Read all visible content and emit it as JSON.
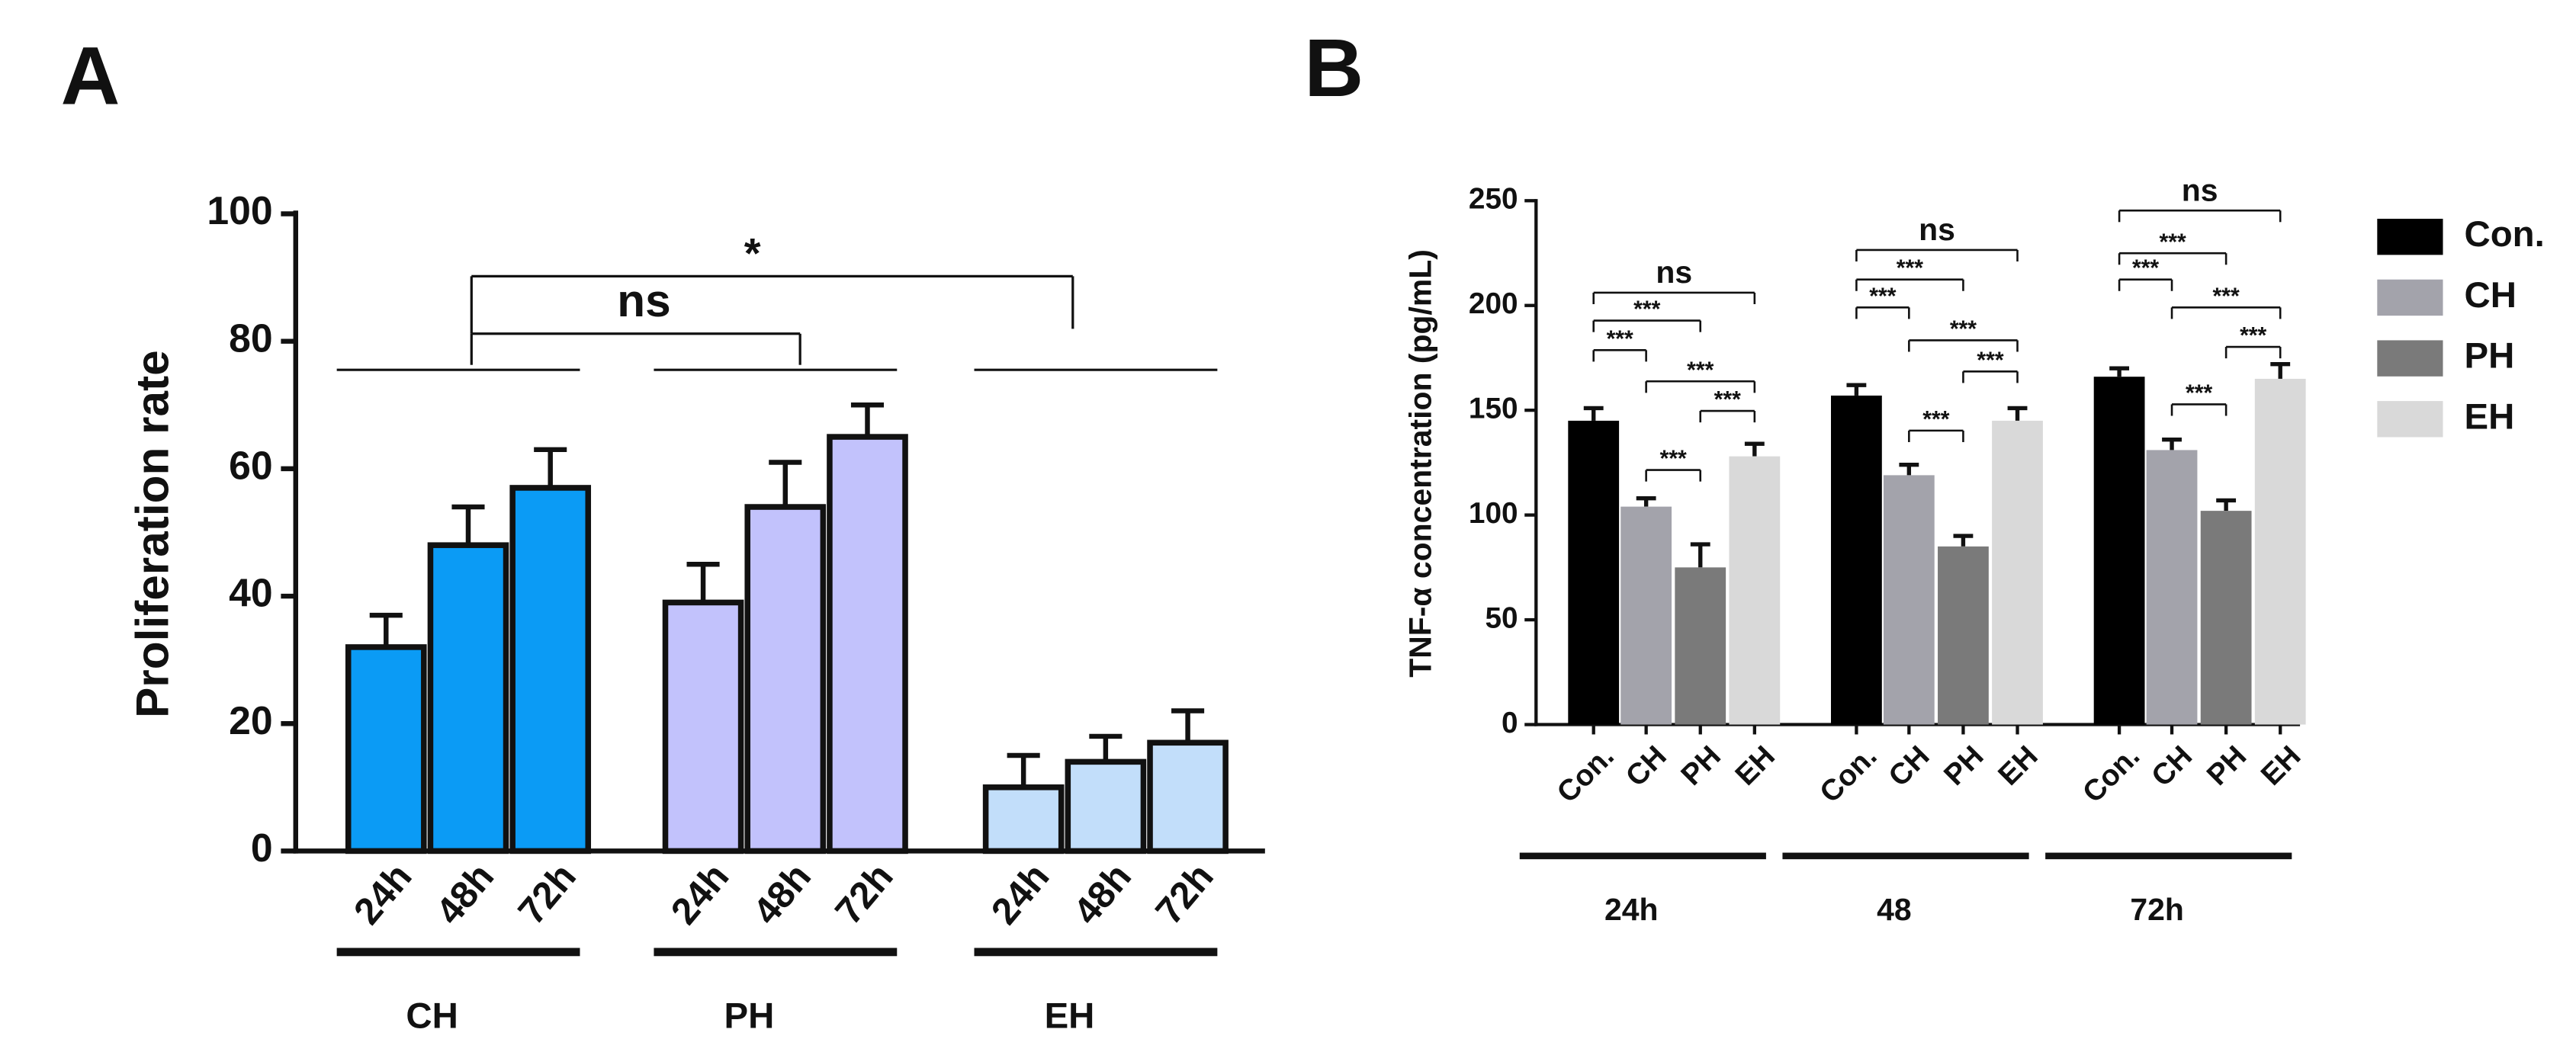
{
  "chart_data": [
    {
      "type": "bar",
      "panel": "A",
      "ylabel": "Proliferation rate",
      "ylim": [
        0,
        100
      ],
      "yticks": [
        0,
        20,
        40,
        60,
        80,
        100
      ],
      "groups": [
        {
          "name": "CH",
          "color": "#0b9bf5",
          "categories": [
            "24h",
            "48h",
            "72h"
          ],
          "values": [
            32,
            48,
            57
          ],
          "errors": [
            5,
            6,
            6
          ]
        },
        {
          "name": "PH",
          "color": "#c2c2fc",
          "categories": [
            "24h",
            "48h",
            "72h"
          ],
          "values": [
            39,
            54,
            65
          ],
          "errors": [
            6,
            7,
            5
          ]
        },
        {
          "name": "EH",
          "color": "#c2defa",
          "categories": [
            "24h",
            "48h",
            "72h"
          ],
          "values": [
            10,
            14,
            17
          ],
          "errors": [
            5,
            4,
            5
          ]
        }
      ],
      "annotations": [
        "ns",
        "*"
      ]
    },
    {
      "type": "grouped_bar",
      "panel": "B",
      "ylabel": "TNF-α concentration (pg/mL)",
      "ylim": [
        0,
        250
      ],
      "yticks": [
        0,
        50,
        100,
        150,
        200,
        250
      ],
      "groups": [
        "24h",
        "48",
        "72h"
      ],
      "series": [
        {
          "name": "Con.",
          "color": "#000000",
          "values": [
            145,
            157,
            166
          ],
          "errors": [
            6,
            5,
            4
          ]
        },
        {
          "name": "CH",
          "color": "#a3a3ab",
          "values": [
            104,
            119,
            131
          ],
          "errors": [
            4,
            5,
            5
          ]
        },
        {
          "name": "PH",
          "color": "#7a7a7a",
          "values": [
            75,
            85,
            102
          ],
          "errors": [
            11,
            5,
            5
          ]
        },
        {
          "name": "EH",
          "color": "#d9d9d9",
          "values": [
            128,
            145,
            165
          ],
          "errors": [
            6,
            6,
            7
          ]
        }
      ],
      "annotations": [
        [
          "ns",
          "***",
          "***",
          "***",
          "***",
          "***"
        ],
        [
          "ns",
          "***",
          "***",
          "***",
          "***",
          "***"
        ],
        [
          "ns",
          "***",
          "***",
          "***",
          "***",
          "***"
        ]
      ],
      "legend": "right"
    }
  ]
}
